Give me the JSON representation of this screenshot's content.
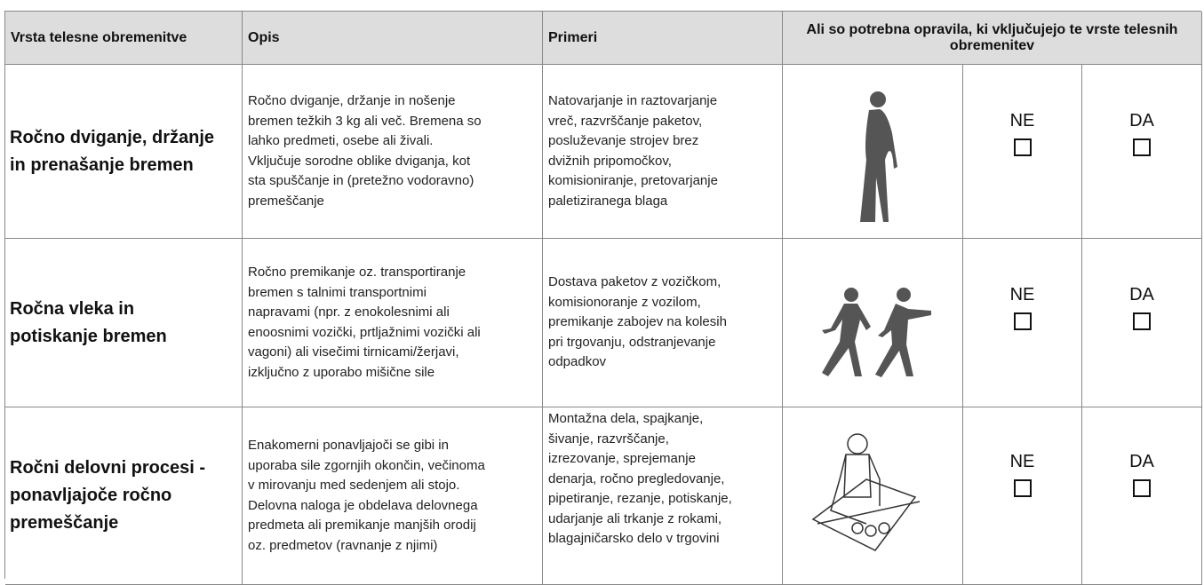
{
  "table": {
    "header": [
      "Vrsta telesne obremenitve",
      "Opis",
      "Primeri",
      "Ali so potrebna opravila, ki vključujejo te vrste telesnih obremenitev"
    ],
    "rows": [
      {
        "type": [
          "Ročno dviganje, držanje",
          "in prenašanje bremen"
        ],
        "description": [
          "Ročno dviganje, držanje in nošenje",
          "bremen težkih 3 kg ali več. Bremena so",
          "lahko predmeti, osebe ali živali.",
          "Vključuje sorodne oblike dviganja, kot",
          "sta spuščanje in (pretežno vodoravno)",
          "premeščanje"
        ],
        "examples": [
          "Natovarjanje in raztovarjanje",
          "vreč, razvrščanje paketov,",
          "posluževanje strojev brez",
          "dvižnih pripomočkov,",
          "komisioniranje, pretovarjanje",
          "paletiziranega blaga"
        ],
        "no": "NE",
        "yes": "DA"
      },
      {
        "type": [
          "Ročna vleka in",
          "potiskanje bremen"
        ],
        "description": [
          "Ročno premikanje oz. transportiranje",
          "bremen s talnimi transportnimi",
          "napravami (npr. z enokolesnimi ali",
          "enoosnimi vozički, prtljažnimi vozički ali",
          "vagoni) ali visečimi tirnicami/žerjavi,",
          "izključno z uporabo mišične sile"
        ],
        "examples": [
          "Dostava paketov z vozičkom,",
          "komisionoranje z vozilom,",
          "premikanje zabojev na kolesih",
          "pri trgovanju, odstranjevanje",
          "odpadkov"
        ],
        "no": "NE",
        "yes": "DA"
      },
      {
        "type": [
          "Ročni delovni procesi -",
          "ponavljajoče ročno",
          "premeščanje"
        ],
        "description": [
          "Enakomerni ponavljajoči se gibi in",
          "uporaba sile zgornjih okončin, večinoma",
          "v mirovanju med sedenjem ali stojo.",
          "Delovna naloga je obdelava delovnega",
          "predmeta ali premikanje manjših orodij",
          "oz. predmetov (ravnanje z njimi)"
        ],
        "examples": [
          "Montažna dela, spajkanje,",
          "šivanje, razvrščanje,",
          "izrezovanje, sprejemanje",
          "denarja, ročno pregledovanje,",
          "pipetiranje, rezanje, potiskanje,",
          "udarjanje ali trkanje z rokami,",
          "blagajničarsko delo v trgovini"
        ],
        "no": "NE",
        "yes": "DA"
      }
    ]
  }
}
